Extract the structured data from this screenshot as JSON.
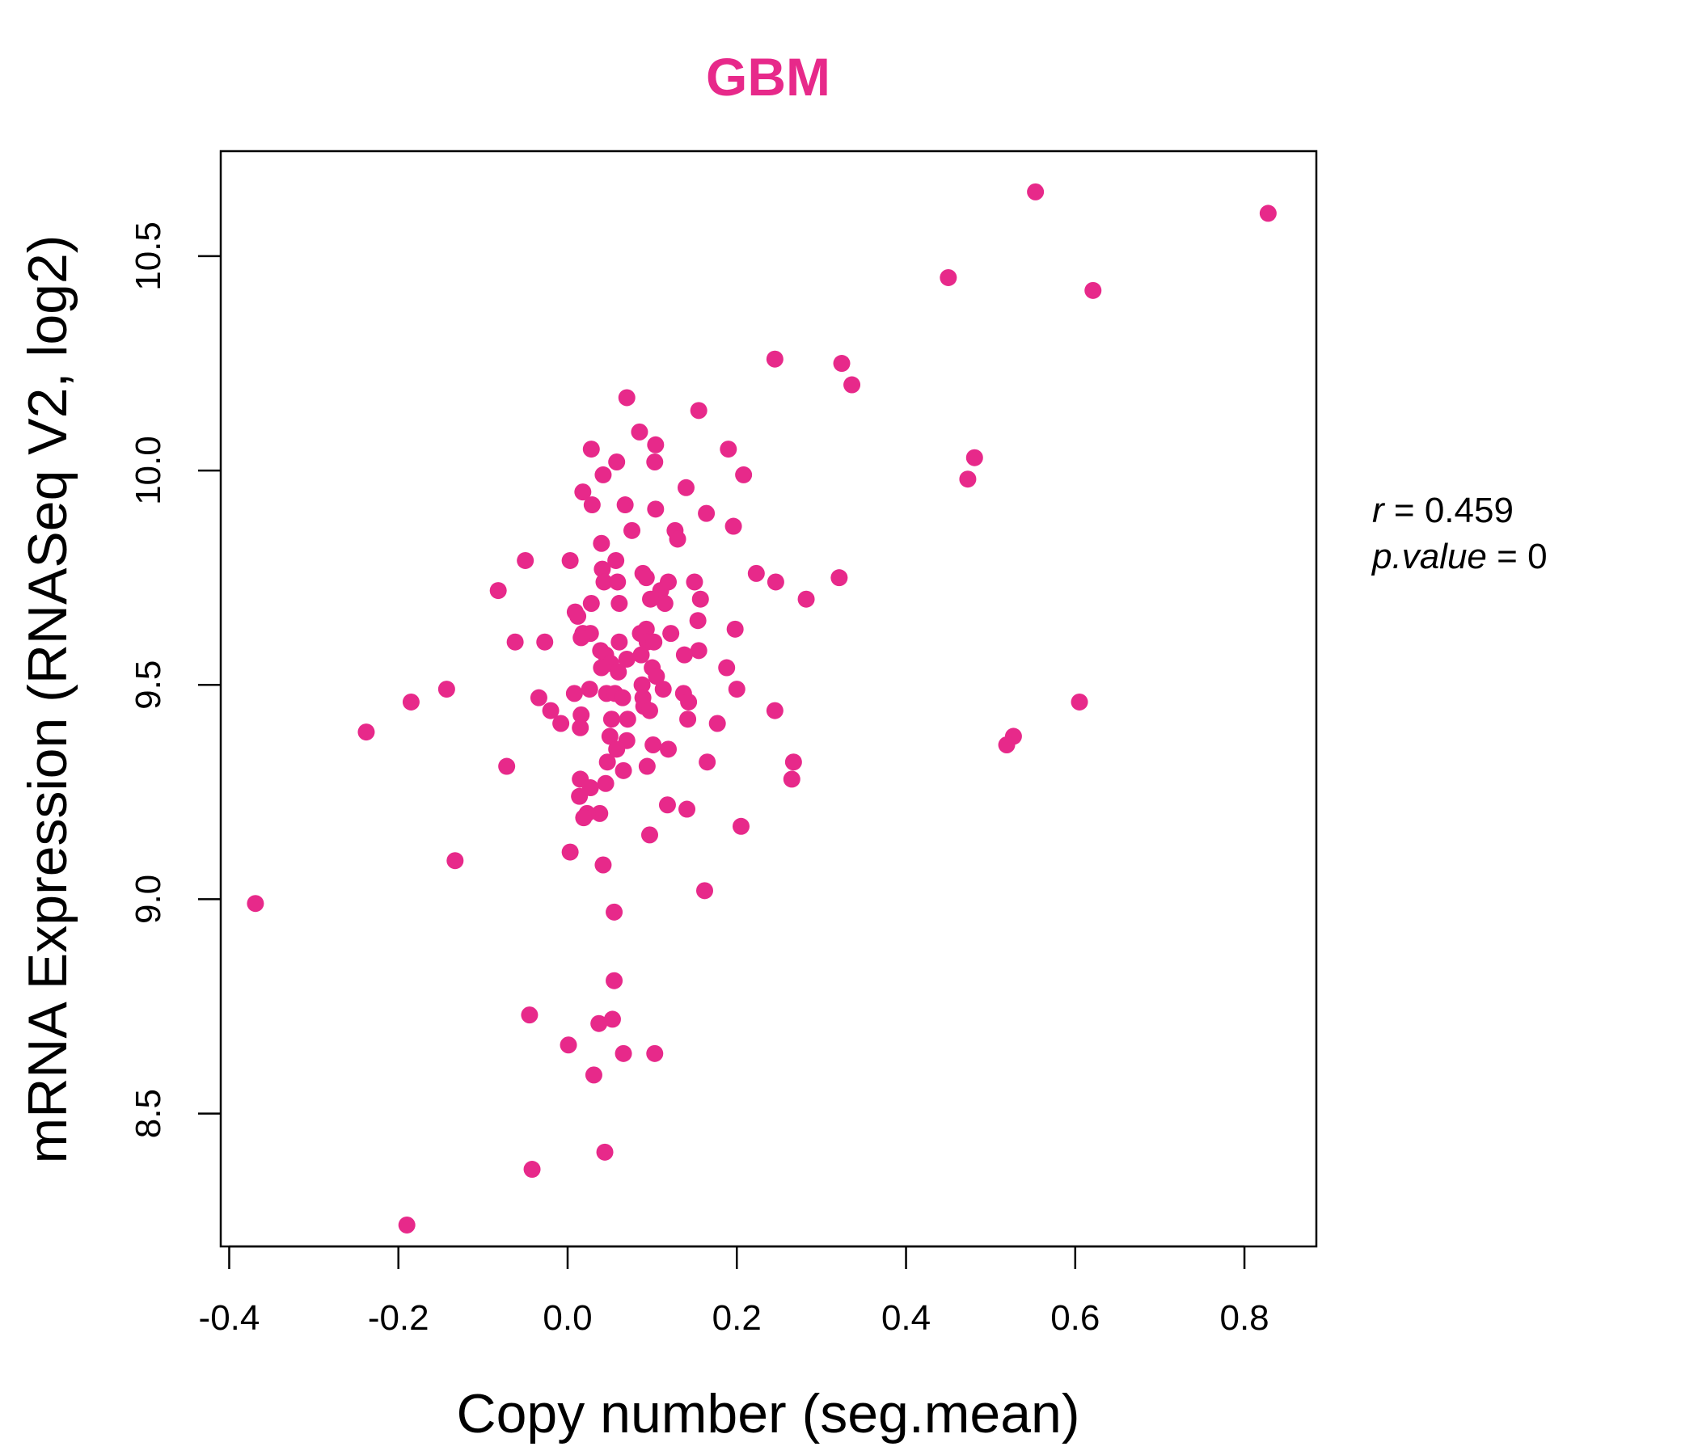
{
  "colors": {
    "accent": "#e7298a",
    "axis": "#000000",
    "background": "#ffffff"
  },
  "chart_data": {
    "type": "scatter",
    "title": "GBM",
    "xlabel": "Copy number (seg.mean)",
    "ylabel": "mRNA Expression (RNASeq V2, log2)",
    "xlim": [
      -0.41,
      0.885
    ],
    "ylim": [
      8.19,
      10.745
    ],
    "x_ticks": [
      -0.4,
      -0.2,
      0.0,
      0.2,
      0.4,
      0.6,
      0.8
    ],
    "x_tick_labels": [
      "-0.4",
      "-0.2",
      "0.0",
      "0.2",
      "0.4",
      "0.6",
      "0.8"
    ],
    "y_ticks": [
      8.5,
      9.0,
      9.5,
      10.0,
      10.5
    ],
    "y_tick_labels": [
      "8.5",
      "9.0",
      "9.5",
      "10.0",
      "10.5"
    ],
    "grid": false,
    "legend": "none",
    "annotation": {
      "r_key": "r",
      "r_value": "0.459",
      "p_key": "p.value",
      "p_value": "0",
      "eq": "="
    },
    "points": [
      [
        0.553,
        10.65
      ],
      [
        0.828,
        10.6
      ],
      [
        0.45,
        10.45
      ],
      [
        0.621,
        10.42
      ],
      [
        0.245,
        10.26
      ],
      [
        0.324,
        10.25
      ],
      [
        0.336,
        10.2
      ],
      [
        0.07,
        10.17
      ],
      [
        0.155,
        10.14
      ],
      [
        0.085,
        10.09
      ],
      [
        0.104,
        10.06
      ],
      [
        0.028,
        10.05
      ],
      [
        0.19,
        10.05
      ],
      [
        0.103,
        10.02
      ],
      [
        0.058,
        10.02
      ],
      [
        0.481,
        10.03
      ],
      [
        0.208,
        9.99
      ],
      [
        0.042,
        9.99
      ],
      [
        0.473,
        9.98
      ],
      [
        0.14,
        9.96
      ],
      [
        0.018,
        9.95
      ],
      [
        0.029,
        9.92
      ],
      [
        0.068,
        9.92
      ],
      [
        0.104,
        9.91
      ],
      [
        0.164,
        9.9
      ],
      [
        0.196,
        9.87
      ],
      [
        0.127,
        9.86
      ],
      [
        0.076,
        9.86
      ],
      [
        0.13,
        9.84
      ],
      [
        0.04,
        9.83
      ],
      [
        -0.05,
        9.79
      ],
      [
        0.003,
        9.79
      ],
      [
        0.057,
        9.79
      ],
      [
        0.041,
        9.77
      ],
      [
        0.089,
        9.76
      ],
      [
        0.093,
        9.75
      ],
      [
        0.223,
        9.76
      ],
      [
        0.321,
        9.75
      ],
      [
        0.246,
        9.74
      ],
      [
        0.043,
        9.74
      ],
      [
        0.059,
        9.74
      ],
      [
        0.119,
        9.74
      ],
      [
        0.15,
        9.74
      ],
      [
        0.11,
        9.72
      ],
      [
        -0.082,
        9.72
      ],
      [
        0.098,
        9.7
      ],
      [
        0.157,
        9.7
      ],
      [
        0.282,
        9.7
      ],
      [
        0.028,
        9.69
      ],
      [
        0.061,
        9.69
      ],
      [
        0.115,
        9.69
      ],
      [
        0.009,
        9.67
      ],
      [
        0.012,
        9.66
      ],
      [
        0.154,
        9.65
      ],
      [
        0.093,
        9.63
      ],
      [
        0.198,
        9.63
      ],
      [
        0.122,
        9.62
      ],
      [
        0.086,
        9.62
      ],
      [
        0.018,
        9.62
      ],
      [
        0.027,
        9.62
      ],
      [
        0.016,
        9.61
      ],
      [
        -0.062,
        9.6
      ],
      [
        0.061,
        9.6
      ],
      [
        0.094,
        9.6
      ],
      [
        0.102,
        9.6
      ],
      [
        -0.027,
        9.6
      ],
      [
        0.039,
        9.58
      ],
      [
        0.155,
        9.58
      ],
      [
        0.045,
        9.57
      ],
      [
        0.087,
        9.57
      ],
      [
        0.138,
        9.57
      ],
      [
        0.07,
        9.56
      ],
      [
        0.051,
        9.55
      ],
      [
        0.04,
        9.54
      ],
      [
        0.1,
        9.54
      ],
      [
        0.06,
        9.53
      ],
      [
        0.188,
        9.54
      ],
      [
        0.105,
        9.52
      ],
      [
        0.088,
        9.5
      ],
      [
        0.113,
        9.49
      ],
      [
        -0.143,
        9.49
      ],
      [
        0.026,
        9.49
      ],
      [
        0.008,
        9.48
      ],
      [
        0.046,
        9.48
      ],
      [
        0.056,
        9.48
      ],
      [
        0.065,
        9.47
      ],
      [
        0.137,
        9.48
      ],
      [
        0.2,
        9.49
      ],
      [
        0.089,
        9.47
      ],
      [
        -0.185,
        9.46
      ],
      [
        -0.034,
        9.47
      ],
      [
        0.143,
        9.46
      ],
      [
        0.605,
        9.46
      ],
      [
        0.09,
        9.45
      ],
      [
        0.097,
        9.44
      ],
      [
        -0.02,
        9.44
      ],
      [
        0.245,
        9.44
      ],
      [
        0.016,
        9.43
      ],
      [
        0.052,
        9.42
      ],
      [
        0.071,
        9.42
      ],
      [
        0.142,
        9.42
      ],
      [
        0.177,
        9.41
      ],
      [
        -0.008,
        9.41
      ],
      [
        0.015,
        9.4
      ],
      [
        -0.238,
        9.39
      ],
      [
        0.527,
        9.38
      ],
      [
        0.05,
        9.38
      ],
      [
        0.07,
        9.37
      ],
      [
        0.101,
        9.36
      ],
      [
        0.519,
        9.36
      ],
      [
        0.058,
        9.35
      ],
      [
        0.119,
        9.35
      ],
      [
        0.267,
        9.32
      ],
      [
        -0.072,
        9.31
      ],
      [
        0.047,
        9.32
      ],
      [
        0.094,
        9.31
      ],
      [
        0.165,
        9.32
      ],
      [
        0.066,
        9.3
      ],
      [
        0.265,
        9.28
      ],
      [
        0.015,
        9.28
      ],
      [
        0.045,
        9.27
      ],
      [
        0.027,
        9.26
      ],
      [
        0.014,
        9.24
      ],
      [
        0.118,
        9.22
      ],
      [
        0.141,
        9.21
      ],
      [
        0.038,
        9.2
      ],
      [
        0.023,
        9.2
      ],
      [
        0.019,
        9.19
      ],
      [
        0.205,
        9.17
      ],
      [
        0.097,
        9.15
      ],
      [
        0.003,
        9.11
      ],
      [
        -0.133,
        9.09
      ],
      [
        0.042,
        9.08
      ],
      [
        0.162,
        9.02
      ],
      [
        -0.369,
        8.99
      ],
      [
        0.055,
        8.97
      ],
      [
        0.055,
        8.81
      ],
      [
        -0.045,
        8.73
      ],
      [
        0.053,
        8.72
      ],
      [
        0.037,
        8.71
      ],
      [
        0.001,
        8.66
      ],
      [
        0.066,
        8.64
      ],
      [
        0.103,
        8.64
      ],
      [
        0.031,
        8.59
      ],
      [
        0.044,
        8.41
      ],
      [
        -0.042,
        8.37
      ],
      [
        -0.19,
        8.24
      ]
    ]
  }
}
